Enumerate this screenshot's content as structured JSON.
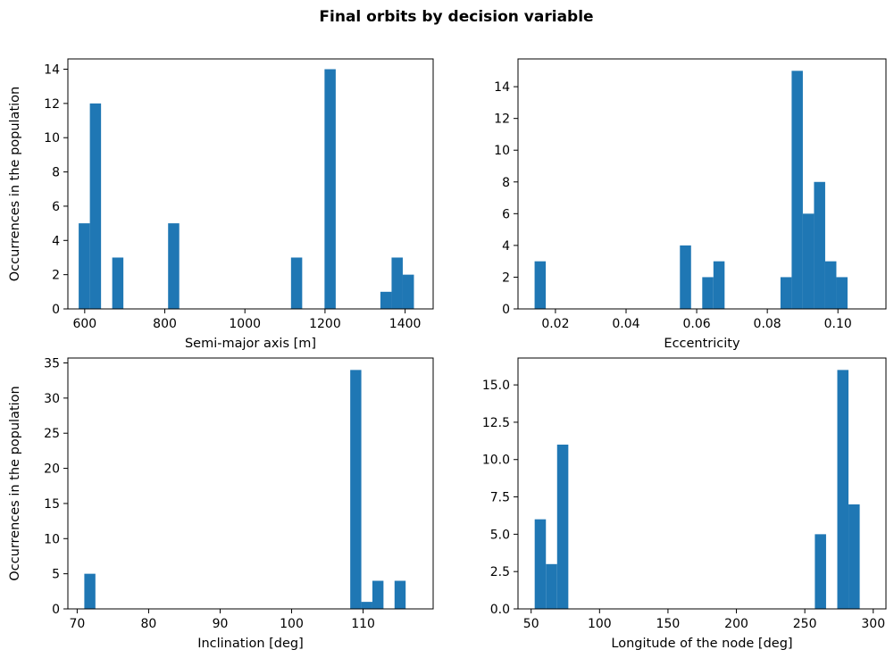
{
  "figure": {
    "title": "Final orbits by decision variable"
  },
  "chart_data": [
    {
      "type": "bar",
      "subtype": "histogram",
      "title": "",
      "xlabel": "Semi-major axis [m]",
      "ylabel": "Occurrences in the population",
      "xlim": [
        558,
        1470
      ],
      "ylim": [
        0,
        14.6
      ],
      "xticks": [
        600,
        800,
        1000,
        1200,
        1400
      ],
      "xtick_labels": [
        "600",
        "800",
        "1000",
        "1200",
        "1400"
      ],
      "yticks": [
        0,
        2,
        4,
        6,
        8,
        10,
        12,
        14
      ],
      "ytick_labels": [
        "0",
        "2",
        "4",
        "6",
        "8",
        "10",
        "12",
        "14"
      ],
      "bin_start": 585,
      "bin_width": 27.9,
      "counts": [
        5,
        12,
        0,
        3,
        0,
        0,
        0,
        0,
        5,
        0,
        0,
        0,
        0,
        0,
        0,
        0,
        0,
        0,
        0,
        3,
        0,
        0,
        14,
        0,
        0,
        0,
        0,
        1,
        3,
        2
      ],
      "grid": false
    },
    {
      "type": "bar",
      "subtype": "histogram",
      "title": "",
      "xlabel": "Eccentricity",
      "ylabel": "",
      "xlim": [
        0.0094,
        0.1136
      ],
      "ylim": [
        0,
        15.75
      ],
      "xticks": [
        0.02,
        0.04,
        0.06,
        0.08,
        0.1
      ],
      "xtick_labels": [
        "0.02",
        "0.04",
        "0.06",
        "0.08",
        "0.10"
      ],
      "yticks": [
        0,
        2,
        4,
        6,
        8,
        10,
        12,
        14
      ],
      "ytick_labels": [
        "0",
        "2",
        "4",
        "6",
        "8",
        "10",
        "12",
        "14"
      ],
      "bin_start": 0.0141,
      "bin_width": 0.003165,
      "counts": [
        3,
        0,
        0,
        0,
        0,
        0,
        0,
        0,
        0,
        0,
        0,
        0,
        0,
        4,
        0,
        2,
        3,
        0,
        0,
        0,
        0,
        0,
        2,
        15,
        6,
        8,
        3,
        2,
        0,
        0
      ],
      "grid": false
    },
    {
      "type": "bar",
      "subtype": "histogram",
      "title": "",
      "xlabel": "Inclination [deg]",
      "ylabel": "Occurrences in the population",
      "xlim": [
        68.7,
        119.8
      ],
      "ylim": [
        0,
        35.7
      ],
      "xticks": [
        70,
        80,
        90,
        100,
        110
      ],
      "xtick_labels": [
        "70",
        "80",
        "90",
        "100",
        "110"
      ],
      "yticks": [
        0,
        5,
        10,
        15,
        20,
        25,
        30,
        35
      ],
      "ytick_labels": [
        "0",
        "5",
        "10",
        "15",
        "20",
        "25",
        "30",
        "35"
      ],
      "bin_start": 71.0,
      "bin_width": 1.55,
      "counts": [
        5,
        0,
        0,
        0,
        0,
        0,
        0,
        0,
        0,
        0,
        0,
        0,
        0,
        0,
        0,
        0,
        0,
        0,
        0,
        0,
        0,
        0,
        0,
        0,
        34,
        1,
        4,
        0,
        4,
        0
      ],
      "grid": false
    },
    {
      "type": "bar",
      "subtype": "histogram",
      "title": "",
      "xlabel": "Longitude of the node [deg]",
      "ylabel": "",
      "xlim": [
        40.4,
        309.3
      ],
      "ylim": [
        0,
        16.8
      ],
      "xticks": [
        50,
        100,
        150,
        200,
        250,
        300
      ],
      "xtick_labels": [
        "50",
        "100",
        "150",
        "200",
        "250",
        "300"
      ],
      "yticks": [
        0,
        2.5,
        5,
        7.5,
        10,
        12.5,
        15
      ],
      "ytick_labels": [
        "0.0",
        "2.5",
        "5.0",
        "7.5",
        "10.0",
        "12.5",
        "15.0"
      ],
      "bin_start": 52.6,
      "bin_width": 8.19,
      "counts": [
        6,
        3,
        11,
        0,
        0,
        0,
        0,
        0,
        0,
        0,
        0,
        0,
        0,
        0,
        0,
        0,
        0,
        0,
        0,
        0,
        0,
        0,
        0,
        0,
        0,
        5,
        0,
        16,
        7
      ],
      "grid": false
    }
  ]
}
